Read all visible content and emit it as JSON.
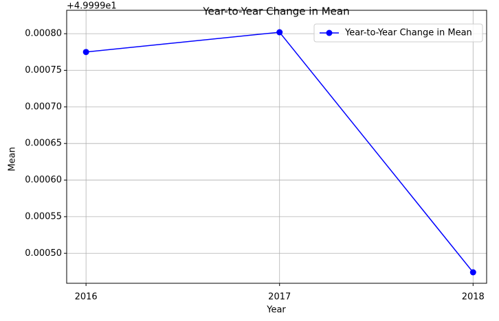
{
  "chart_data": {
    "type": "line",
    "title": "Year-to-Year Change in Mean",
    "xlabel": "Year",
    "ylabel": "Mean",
    "offset_text": "+4.9999e1",
    "x": [
      2016,
      2017,
      2018
    ],
    "series": [
      {
        "name": "Year-to-Year Change in Mean",
        "color": "#0000ff",
        "values": [
          0.000775,
          0.000802,
          0.000474
        ]
      }
    ],
    "xlim": [
      2015.9,
      2018.07
    ],
    "xticks": [
      2016,
      2017,
      2018
    ],
    "ylim": [
      0.000459,
      0.000832
    ],
    "yticks": [
      {
        "value": 0.0005,
        "label": "0.00050"
      },
      {
        "value": 0.00055,
        "label": "0.00055"
      },
      {
        "value": 0.0006,
        "label": "0.00060"
      },
      {
        "value": 0.00065,
        "label": "0.00065"
      },
      {
        "value": 0.0007,
        "label": "0.00070"
      },
      {
        "value": 0.00075,
        "label": "0.00075"
      },
      {
        "value": 0.0008,
        "label": "0.00080"
      }
    ],
    "grid": true,
    "legend": "upper right"
  }
}
